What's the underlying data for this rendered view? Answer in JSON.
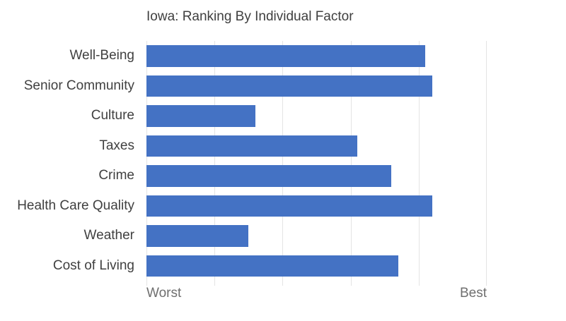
{
  "title": "Iowa: Ranking By Individual Factor",
  "axis": {
    "min_label": "Worst",
    "max_label": "Best"
  },
  "colors": {
    "bar": "#4472C4",
    "gridline": "#E4E4E4",
    "title_text": "#3F3F3F",
    "category_text": "#404040",
    "axis_label_text": "#6F6F6F",
    "background": "#FFFFFF"
  },
  "chart_data": {
    "type": "bar",
    "orientation": "horizontal",
    "title": "Iowa: Ranking By Individual Factor",
    "categories": [
      "Well-Being",
      "Senior Community",
      "Culture",
      "Taxes",
      "Crime",
      "Health Care Quality",
      "Weather",
      "Cost of Living"
    ],
    "values": [
      41,
      42,
      16,
      31,
      36,
      42,
      15,
      37
    ],
    "xlim": [
      0,
      50
    ],
    "gridline_interval": 10,
    "xtick_labels": [
      "Worst",
      "Best"
    ],
    "ylabel": "",
    "xlabel": "",
    "legend": "none",
    "grid": "vertical"
  }
}
